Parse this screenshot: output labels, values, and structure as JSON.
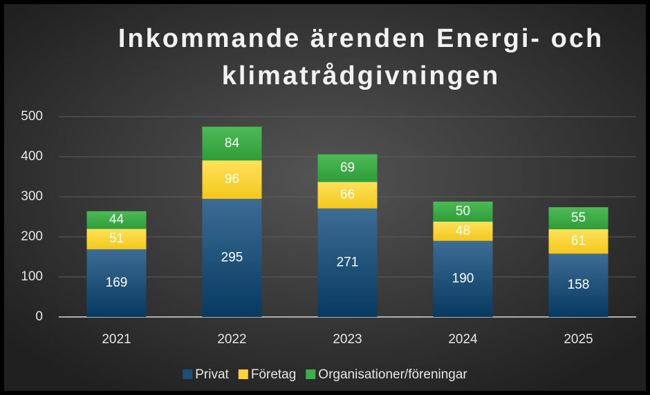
{
  "chart_data": {
    "type": "stacked_bar",
    "title": [
      "Inkommande ärenden Energi- och",
      "klimatrådgivningen"
    ],
    "categories": [
      "2021",
      "2022",
      "2023",
      "2024",
      "2025"
    ],
    "series": [
      {
        "name": "Privat",
        "color": "#1d4f7a",
        "values": [
          169,
          295,
          271,
          190,
          158
        ]
      },
      {
        "name": "Företag",
        "color": "#ffd43b",
        "values": [
          51,
          96,
          66,
          48,
          61
        ]
      },
      {
        "name": "Organisationer/föreningar",
        "color": "#3fae49",
        "values": [
          44,
          84,
          69,
          50,
          55
        ]
      }
    ],
    "ylim": [
      0,
      500
    ],
    "yticks": [
      0,
      100,
      200,
      300,
      400,
      500
    ],
    "grid": true,
    "legend": "bottom"
  }
}
